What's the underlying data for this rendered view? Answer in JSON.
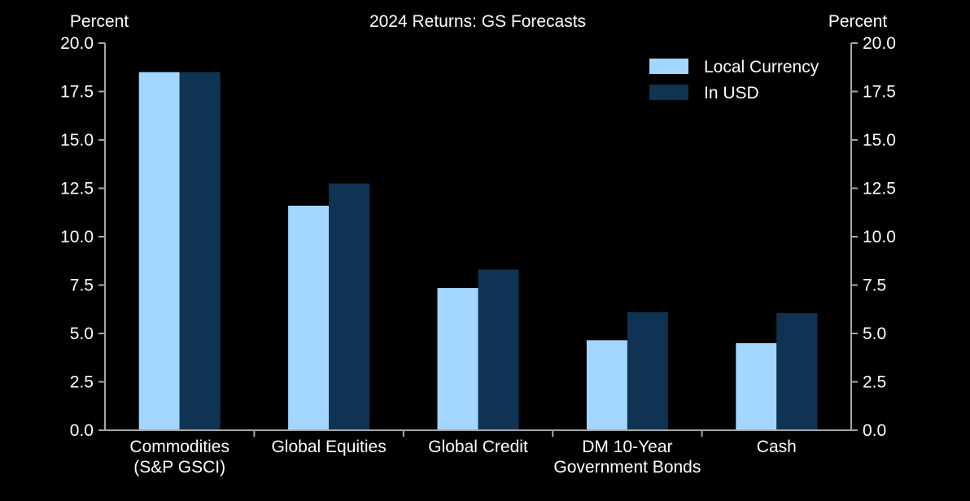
{
  "chart_data": {
    "type": "bar",
    "title": "2024 Returns: GS Forecasts",
    "y_axis_left_label": "Percent",
    "y_axis_right_label": "Percent",
    "ylim": [
      0,
      20
    ],
    "yticks": [
      "0.0",
      "2.5",
      "5.0",
      "7.5",
      "10.0",
      "12.5",
      "15.0",
      "17.5",
      "20.0"
    ],
    "grid": false,
    "legend_position": "top-right",
    "categories": [
      [
        "Commodities",
        "(S&P GSCI)"
      ],
      [
        "Global Equities"
      ],
      [
        "Global Credit"
      ],
      [
        "DM 10-Year",
        "Government Bonds"
      ],
      [
        "Cash"
      ]
    ],
    "series": [
      {
        "name": "Local Currency",
        "color": "#a3d6ff",
        "values": [
          18.5,
          11.6,
          7.35,
          4.65,
          4.5
        ]
      },
      {
        "name": "In USD",
        "color": "#0f3353",
        "values": [
          18.5,
          12.75,
          8.3,
          6.1,
          6.05
        ]
      }
    ],
    "axis_color": "#a6a6a6",
    "text_color": "#ffffff"
  }
}
